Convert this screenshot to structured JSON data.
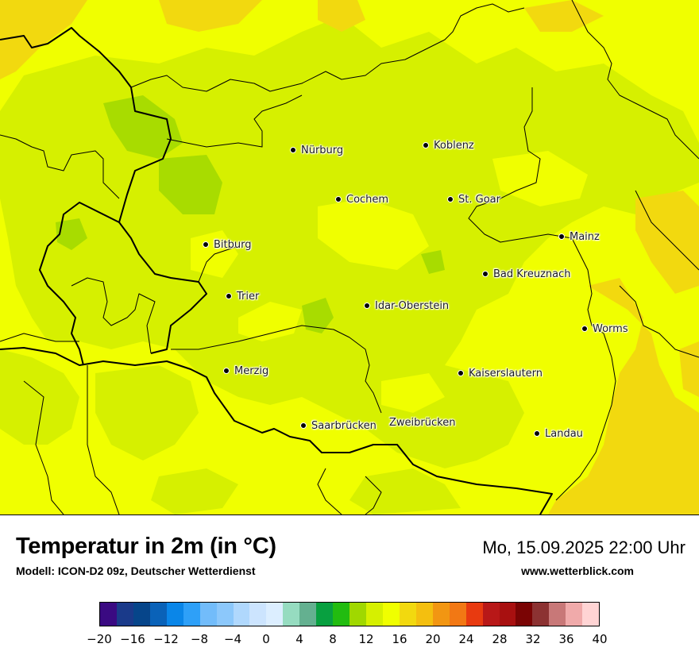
{
  "map": {
    "cities": [
      {
        "name": "Nürburg"
      },
      {
        "name": "Koblenz"
      },
      {
        "name": "Cochem"
      },
      {
        "name": "St. Goar"
      },
      {
        "name": "Bitburg"
      },
      {
        "name": "Mainz"
      },
      {
        "name": "Bad Kreuznach"
      },
      {
        "name": "Trier"
      },
      {
        "name": "Idar-Oberstein"
      },
      {
        "name": "Worms"
      },
      {
        "name": "Merzig"
      },
      {
        "name": "Kaiserslautern"
      },
      {
        "name": "Saarbrücken"
      },
      {
        "name": "Zweibrücken"
      },
      {
        "name": "Landau"
      }
    ],
    "field_colors": {
      "deg16": "#f0ff00",
      "deg14": "#d6f000",
      "deg12": "#a8dc00",
      "deg18": "#f2d90f"
    }
  },
  "footer": {
    "title": "Temperatur in 2m (in °C)",
    "model": "Modell: ICON-D2 09z, Deutscher Wetterdienst",
    "datetime": "Mo, 15.09.2025 22:00 Uhr",
    "website": "www.wetterblick.com"
  },
  "legend": {
    "unit": "°C",
    "colors": [
      "#3a0a82",
      "#1a3a8a",
      "#06458a",
      "#0a62b8",
      "#0a86e8",
      "#2ea0f8",
      "#72bcfa",
      "#8cc8fb",
      "#b0d8fd",
      "#cce4fe",
      "#dceeff",
      "#96dcc0",
      "#64b090",
      "#08a040",
      "#22bc10",
      "#a0d800",
      "#d6f000",
      "#f0ff00",
      "#f2d90f",
      "#f4bf0f",
      "#f29612",
      "#f27814",
      "#e83a10",
      "#b81818",
      "#a81010",
      "#7a0404",
      "#8c3232",
      "#c87878",
      "#f0aaaa",
      "#ffd4d4"
    ],
    "ticks": [
      "−20",
      "−16",
      "−12",
      "−8",
      "−4",
      "0",
      "4",
      "8",
      "12",
      "16",
      "20",
      "24",
      "28",
      "32",
      "36",
      "40"
    ]
  }
}
